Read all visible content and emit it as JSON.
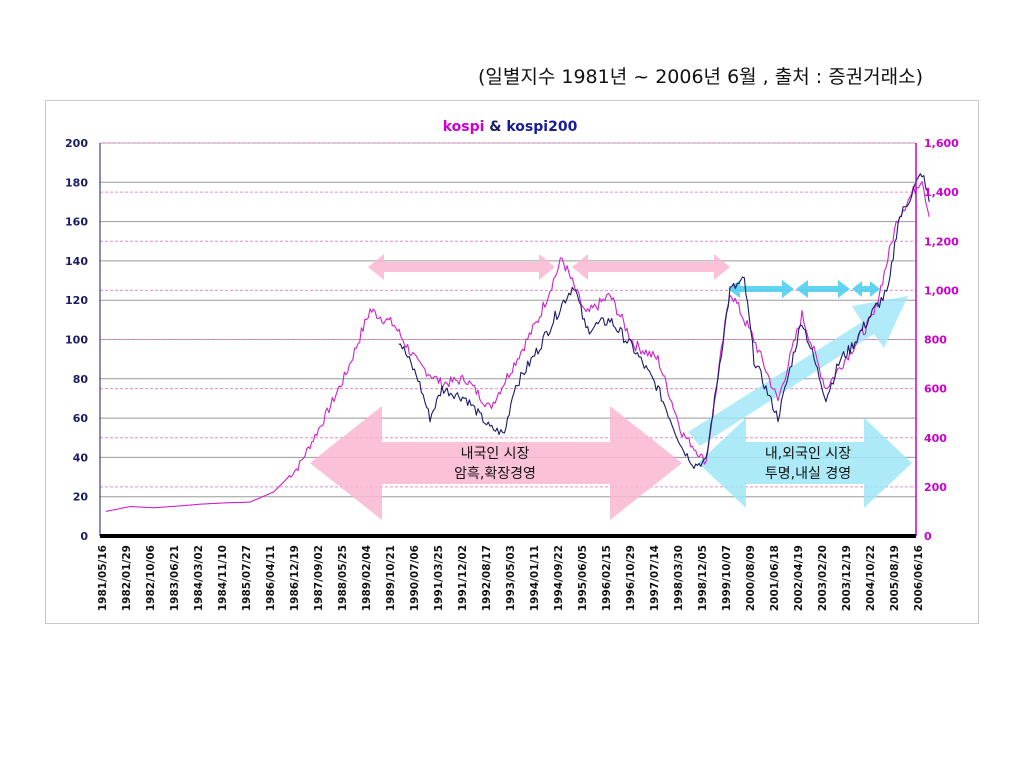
{
  "caption": "(일별지수 1981년 ~ 2006년 6월 , 출처 : 증권거래소)",
  "chart_data": {
    "type": "line",
    "title_parts": [
      {
        "text": "kospi",
        "color": "#cc00cc"
      },
      {
        "text": " & ",
        "color": "#1a1a66"
      },
      {
        "text": "kospi200",
        "color": "#1a1a99"
      }
    ],
    "y_left": {
      "min": 0,
      "max": 200,
      "ticks": [
        "0",
        "20",
        "40",
        "60",
        "80",
        "100",
        "120",
        "140",
        "160",
        "180",
        "200"
      ],
      "color": "#1a1a66"
    },
    "y_right": {
      "min": 0,
      "max": 1600,
      "ticks": [
        "0",
        "200",
        "400",
        "600",
        "800",
        "1,000",
        "1,200",
        "1,400",
        "1,600"
      ],
      "color": "#cc00cc"
    },
    "x_labels": [
      "1981/05/16",
      "1982/01/29",
      "1982/10/06",
      "1983/06/21",
      "1984/03/02",
      "1984/11/10",
      "1985/07/27",
      "1986/04/11",
      "1986/12/19",
      "1987/09/02",
      "1988/05/25",
      "1989/02/04",
      "1989/10/21",
      "1990/07/06",
      "1991/03/25",
      "1991/12/02",
      "1992/08/17",
      "1993/05/03",
      "1994/01/11",
      "1994/09/22",
      "1995/06/05",
      "1996/02/15",
      "1996/10/29",
      "1997/07/14",
      "1998/03/30",
      "1998/12/05",
      "1999/10/07",
      "2000/08/09",
      "2001/06/18",
      "2002/04/19",
      "2003/02/20",
      "2003/12/19",
      "2004/10/22",
      "2005/08/19",
      "2006/06/16"
    ],
    "grid": true,
    "series": [
      {
        "name": "kospi",
        "axis": "right",
        "color": "#cc22cc",
        "points": [
          [
            0,
            100
          ],
          [
            1,
            120
          ],
          [
            2,
            115
          ],
          [
            3,
            122
          ],
          [
            4,
            130
          ],
          [
            5,
            135
          ],
          [
            6,
            138
          ],
          [
            7,
            180
          ],
          [
            8,
            280
          ],
          [
            9,
            460
          ],
          [
            10,
            660
          ],
          [
            11,
            920
          ],
          [
            12,
            860
          ],
          [
            13,
            700
          ],
          [
            14,
            620
          ],
          [
            15,
            640
          ],
          [
            16,
            520
          ],
          [
            17,
            700
          ],
          [
            18,
            880
          ],
          [
            19,
            1130
          ],
          [
            20,
            900
          ],
          [
            21,
            980
          ],
          [
            22,
            780
          ],
          [
            23,
            720
          ],
          [
            24,
            420
          ],
          [
            25,
            300
          ],
          [
            26,
            1000
          ],
          [
            27,
            800
          ],
          [
            28,
            550
          ],
          [
            29,
            900
          ],
          [
            30,
            600
          ],
          [
            31,
            750
          ],
          [
            32,
            900
          ],
          [
            33,
            1300
          ],
          [
            34,
            1460
          ],
          [
            34.3,
            1300
          ]
        ]
      },
      {
        "name": "kospi200",
        "axis": "left",
        "color": "#1a1a66",
        "points": [
          [
            12.2,
            100
          ],
          [
            13,
            80
          ],
          [
            13.5,
            60
          ],
          [
            14,
            75
          ],
          [
            15,
            70
          ],
          [
            16,
            55
          ],
          [
            16.6,
            52
          ],
          [
            17,
            75
          ],
          [
            18,
            95
          ],
          [
            19,
            118
          ],
          [
            19.5,
            128
          ],
          [
            20,
            105
          ],
          [
            21,
            110
          ],
          [
            22,
            95
          ],
          [
            23,
            75
          ],
          [
            24,
            45
          ],
          [
            24.5,
            36
          ],
          [
            25,
            38
          ],
          [
            26,
            125
          ],
          [
            26.6,
            130
          ],
          [
            27,
            90
          ],
          [
            28,
            60
          ],
          [
            29,
            110
          ],
          [
            30,
            70
          ],
          [
            30.6,
            90
          ],
          [
            31,
            95
          ],
          [
            32,
            115
          ],
          [
            32.6,
            125
          ],
          [
            33,
            160
          ],
          [
            34,
            185
          ],
          [
            34.3,
            170
          ]
        ]
      }
    ],
    "annotations": [
      {
        "text": [
          "내국인 시장",
          "암흑,확장경영"
        ],
        "color": "#f9b6d2"
      },
      {
        "text": [
          "내,외국인 시장",
          "투명,내실 경영"
        ],
        "color": "#9ee6f7"
      }
    ]
  }
}
